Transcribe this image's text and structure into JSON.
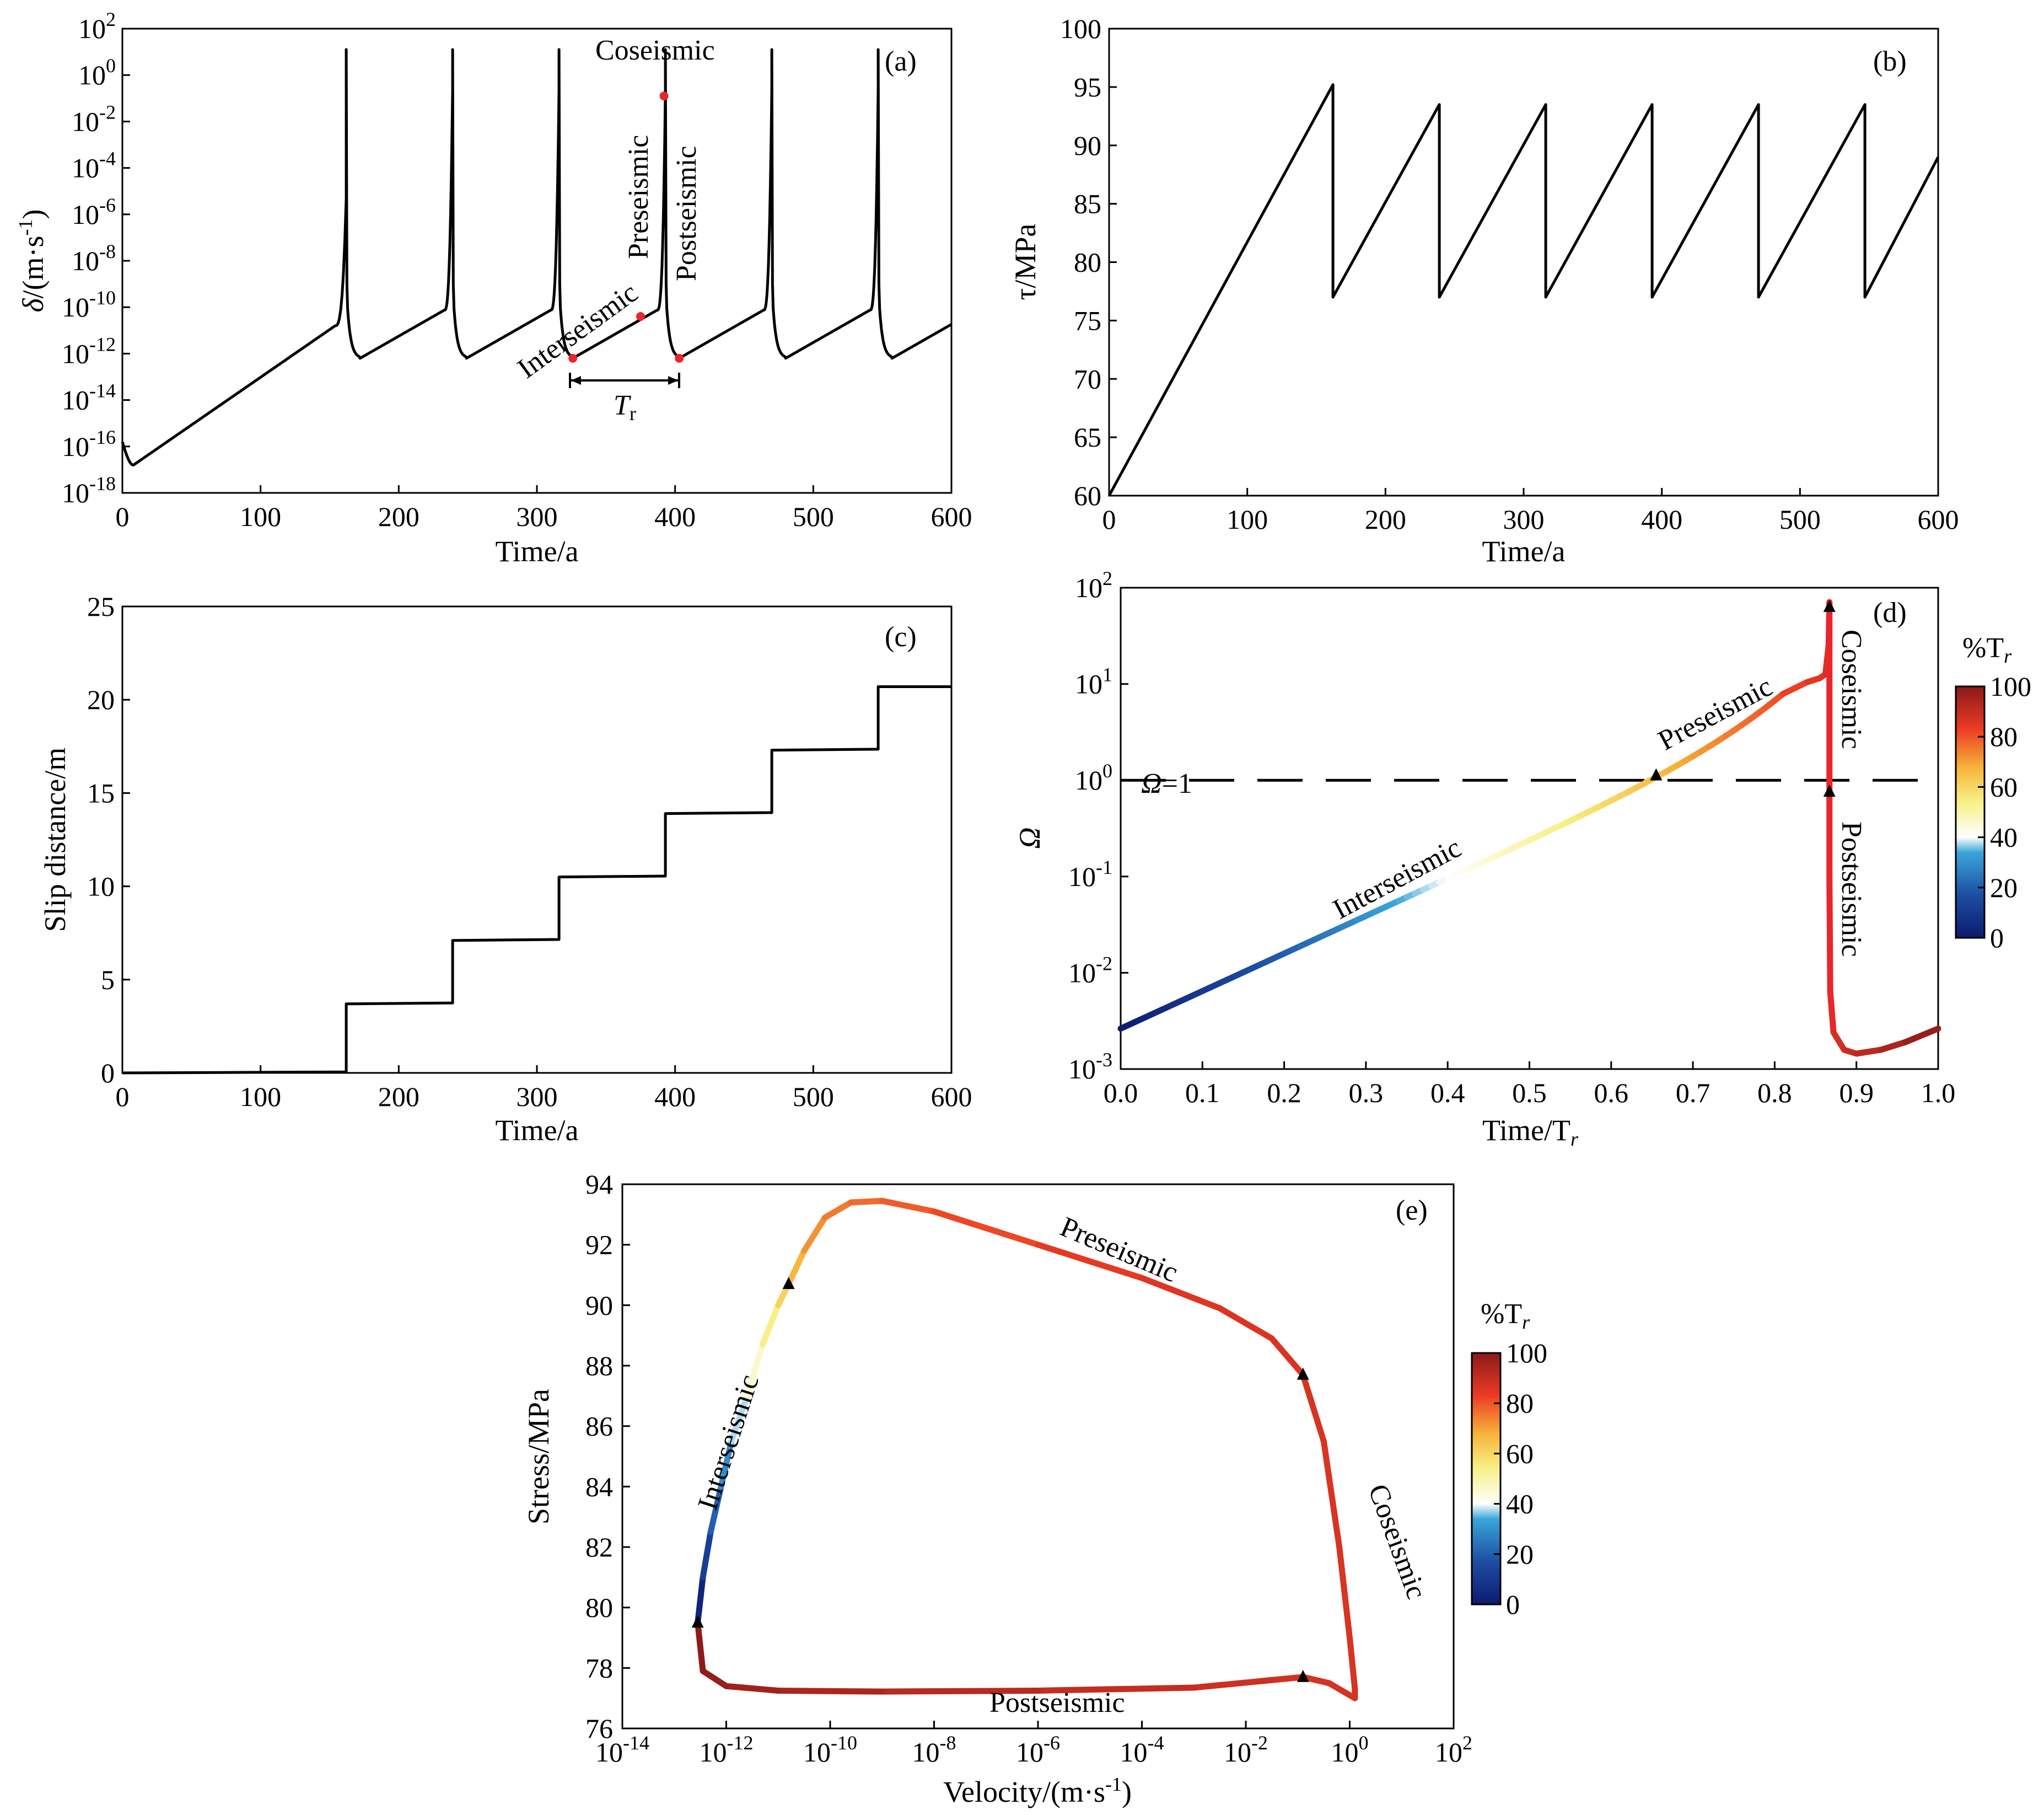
{
  "colorbar": {
    "title": "%T",
    "title_sub": "r",
    "ticks": [
      "100",
      "80",
      "60",
      "40",
      "20",
      "0"
    ],
    "stops": [
      "#0d1a6e",
      "#1c4ea3",
      "#3aa6d9",
      "#ffffff",
      "#f7ee80",
      "#f6b23a",
      "#ec3b24",
      "#8a1a1a"
    ]
  },
  "colors": {
    "line": "#000000",
    "red_curve": "#e8262b",
    "marker_dot": "#e8262b"
  },
  "chart_data": [
    {
      "id": "a",
      "type": "line",
      "panel_label": "(a)",
      "ylabel_sym": "δ",
      "ylabel_unit": "/(m·s",
      "ylabel_sup": "-1",
      "ylabel_end": ")",
      "xlabel": "Time/a",
      "xlim": [
        0,
        600
      ],
      "ylim_log10": [
        -18,
        2
      ],
      "x_ticks": [
        "0",
        "100",
        "200",
        "300",
        "400",
        "500",
        "600"
      ],
      "y_ticks": [
        {
          "b": "10",
          "e": "2"
        },
        {
          "b": "10",
          "e": "0"
        },
        {
          "b": "10",
          "e": "-2"
        },
        {
          "b": "10",
          "e": "-4"
        },
        {
          "b": "10",
          "e": "-6"
        },
        {
          "b": "10",
          "e": "-8"
        },
        {
          "b": "10",
          "e": "-10"
        },
        {
          "b": "10",
          "e": "-12"
        },
        {
          "b": "10",
          "e": "-14"
        },
        {
          "b": "10",
          "e": "-16"
        },
        {
          "b": "10",
          "e": "-18"
        }
      ],
      "events_time": [
        162,
        239,
        316,
        393,
        470,
        547
      ],
      "annotations": {
        "coseismic": "Coseismic",
        "preseismic": "Preseismic",
        "postseismic": "Postseismic",
        "interseismic": "Interseismic",
        "tr": "T",
        "tr_sub": "r"
      },
      "marked_points": [
        {
          "t": 326,
          "log10v": -12.2
        },
        {
          "t": 375,
          "log10v": -10.4
        },
        {
          "t": 392,
          "log10v": -0.9
        },
        {
          "t": 403,
          "log10v": -12.2
        }
      ]
    },
    {
      "id": "b",
      "type": "line",
      "panel_label": "(b)",
      "ylabel": "τ/MPa",
      "xlabel": "Time/a",
      "xlim": [
        0,
        600
      ],
      "ylim": [
        60,
        100
      ],
      "x_ticks": [
        "0",
        "100",
        "200",
        "300",
        "400",
        "500",
        "600"
      ],
      "y_ticks": [
        "100",
        "95",
        "90",
        "85",
        "80",
        "75",
        "70",
        "65",
        "60"
      ],
      "points": [
        [
          0,
          60
        ],
        [
          162,
          95.2
        ],
        [
          162,
          77
        ],
        [
          239,
          93.5
        ],
        [
          239,
          77
        ],
        [
          316,
          93.5
        ],
        [
          316,
          77
        ],
        [
          393,
          93.5
        ],
        [
          393,
          77
        ],
        [
          470,
          93.5
        ],
        [
          470,
          77
        ],
        [
          547,
          93.5
        ],
        [
          547,
          77
        ],
        [
          600,
          89
        ]
      ]
    },
    {
      "id": "c",
      "type": "line",
      "panel_label": "(c)",
      "ylabel": "Slip distance/m",
      "xlabel": "Time/a",
      "xlim": [
        0,
        600
      ],
      "ylim": [
        0,
        25
      ],
      "x_ticks": [
        "0",
        "100",
        "200",
        "300",
        "400",
        "500",
        "600"
      ],
      "y_ticks": [
        "25",
        "20",
        "15",
        "10",
        "5",
        "0"
      ],
      "steps": [
        {
          "t": 162,
          "slip": 3.7
        },
        {
          "t": 239,
          "slip": 7.1
        },
        {
          "t": 316,
          "slip": 10.5
        },
        {
          "t": 393,
          "slip": 13.9
        },
        {
          "t": 470,
          "slip": 17.3
        },
        {
          "t": 547,
          "slip": 20.7
        }
      ]
    },
    {
      "id": "d",
      "type": "line",
      "panel_label": "(d)",
      "ylabel": "Ω",
      "xlabel": "Time/T",
      "xlabel_sub": "r",
      "xlim": [
        0,
        1
      ],
      "ylim_log10": [
        -3,
        2
      ],
      "x_ticks": [
        "0.0",
        "0.1",
        "0.2",
        "0.3",
        "0.4",
        "0.5",
        "0.6",
        "0.7",
        "0.8",
        "0.9",
        "1.0"
      ],
      "y_ticks": [
        {
          "b": "10",
          "e": "2"
        },
        {
          "b": "10",
          "e": "1"
        },
        {
          "b": "10",
          "e": "0"
        },
        {
          "b": "10",
          "e": "-1"
        },
        {
          "b": "10",
          "e": "-2"
        },
        {
          "b": "10",
          "e": "-3"
        }
      ],
      "reference_line": {
        "log10": 0,
        "label": "Ω=1"
      },
      "annotations": {
        "interseismic": "Interseismic",
        "preseismic": "Preseismic",
        "coseismic": "Coseismic",
        "postseismic": "Postseismic"
      },
      "triangles": [
        {
          "x": 0.655,
          "log10": 0.05
        },
        {
          "x": 0.867,
          "log10": 1.8
        },
        {
          "x": 0.867,
          "log10": -0.12
        }
      ]
    },
    {
      "id": "e",
      "type": "line",
      "panel_label": "(e)",
      "ylabel": "Stress/MPa",
      "xlabel": "Velocity/(m·s",
      "xlabel_sup": "-1",
      "xlabel_end": ")",
      "xlim_log10": [
        -14,
        2
      ],
      "ylim": [
        76,
        94
      ],
      "x_ticks": [
        {
          "b": "10",
          "e": "-14"
        },
        {
          "b": "10",
          "e": "-12"
        },
        {
          "b": "10",
          "e": "-10"
        },
        {
          "b": "10",
          "e": "-8"
        },
        {
          "b": "10",
          "e": "-6"
        },
        {
          "b": "10",
          "e": "-4"
        },
        {
          "b": "10",
          "e": "-2"
        },
        {
          "b": "10",
          "e": "0"
        },
        {
          "b": "10",
          "e": "2"
        }
      ],
      "y_ticks": [
        "94",
        "92",
        "90",
        "88",
        "86",
        "84",
        "82",
        "80",
        "78",
        "76"
      ],
      "annotations": {
        "interseismic": "Interseismic",
        "preseismic": "Preseismic",
        "coseismic": "Coseismic",
        "postseismic": "Postseismic"
      },
      "triangles": [
        {
          "log10v": -12.55,
          "stress": 79.5
        },
        {
          "log10v": -10.8,
          "stress": 90.7
        },
        {
          "log10v": -0.9,
          "stress": 87.7
        },
        {
          "log10v": -0.9,
          "stress": 77.7
        }
      ]
    }
  ]
}
